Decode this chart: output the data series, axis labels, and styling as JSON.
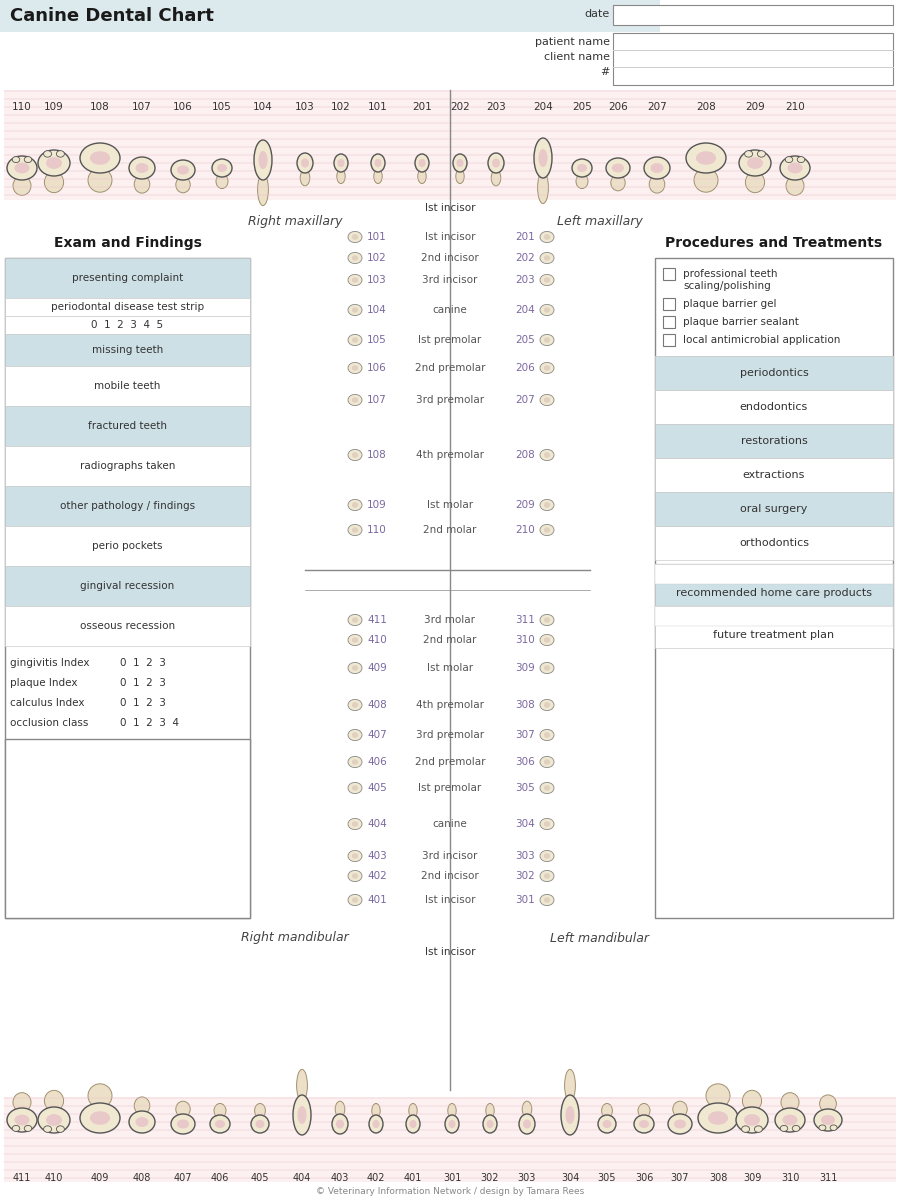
{
  "title": "Canine Dental Chart",
  "title_bg": "#dce9ed",
  "bg_color": "#ffffff",
  "shaded_color": "#cde0e5",
  "top_teeth_numbers": [
    "110",
    "109",
    "108",
    "107",
    "106",
    "105",
    "104",
    "103",
    "102",
    "101",
    "201",
    "202",
    "203",
    "204",
    "205",
    "206",
    "207",
    "208",
    "209",
    "210"
  ],
  "bottom_teeth_numbers": [
    "411",
    "410",
    "409",
    "408",
    "407",
    "406",
    "405",
    "404",
    "403",
    "402",
    "401",
    "301",
    "302",
    "303",
    "304",
    "305",
    "306",
    "307",
    "308",
    "309",
    "310",
    "311"
  ],
  "exam_title": "Exam and Findings",
  "exam_rows": [
    {
      "label": "presenting complaint",
      "shaded": true,
      "extra_lines": 1
    },
    {
      "label": "periodontal disease test strip",
      "shaded": false,
      "extra_lines": 0
    },
    {
      "label": "0  1  2  3  4  5",
      "shaded": false,
      "extra_lines": 0
    },
    {
      "label": "missing teeth",
      "shaded": true,
      "extra_lines": 1
    },
    {
      "label": "mobile teeth",
      "shaded": false,
      "extra_lines": 1
    },
    {
      "label": "fractured teeth",
      "shaded": true,
      "extra_lines": 1
    },
    {
      "label": "radiographs taken",
      "shaded": false,
      "extra_lines": 1
    },
    {
      "label": "other pathology / findings",
      "shaded": true,
      "extra_lines": 1
    },
    {
      "label": "perio pockets",
      "shaded": false,
      "extra_lines": 1
    },
    {
      "label": "gingival recession",
      "shaded": true,
      "extra_lines": 1
    },
    {
      "label": "osseous recession",
      "shaded": false,
      "extra_lines": 1
    }
  ],
  "index_rows": [
    {
      "label": "gingivitis Index",
      "values": "0  1  2  3"
    },
    {
      "label": "plaque Index    ",
      "values": "0  1  2  3"
    },
    {
      "label": "calculus Index  ",
      "values": "0  1  2  3"
    },
    {
      "label": "occlusion class ",
      "values": "0  1  2  3  4"
    }
  ],
  "procedures_title": "Procedures and Treatments",
  "procedures_checkbox": [
    {
      "line1": "professional teeth",
      "line2": "scaling/polishing"
    },
    {
      "line1": "plaque barrier gel",
      "line2": ""
    },
    {
      "line1": "plaque barrier sealant",
      "line2": ""
    },
    {
      "line1": "local antimicrobial application",
      "line2": ""
    }
  ],
  "procedures_rows": [
    {
      "label": "periodontics",
      "shaded": true
    },
    {
      "label": "endodontics",
      "shaded": false
    },
    {
      "label": "restorations",
      "shaded": true
    },
    {
      "label": "extractions",
      "shaded": false
    },
    {
      "label": "oral surgery",
      "shaded": true
    },
    {
      "label": "orthodontics",
      "shaded": false
    }
  ],
  "procedures_text_rows": [
    {
      "label": "recommended home care products",
      "shaded": true
    },
    {
      "label": "future treatment plan",
      "shaded": false
    }
  ],
  "tooth_labels_upper": [
    {
      "num": "101",
      "name": "Ist incisor",
      "num2": "201"
    },
    {
      "num": "102",
      "name": "2nd incisor",
      "num2": "202"
    },
    {
      "num": "103",
      "name": "3rd incisor",
      "num2": "203"
    },
    {
      "num": "104",
      "name": "canine",
      "num2": "204"
    },
    {
      "num": "105",
      "name": "Ist premolar",
      "num2": "205"
    },
    {
      "num": "106",
      "name": "2nd premolar",
      "num2": "206"
    },
    {
      "num": "107",
      "name": "3rd premolar",
      "num2": "207"
    },
    {
      "num": "108",
      "name": "4th premolar",
      "num2": "208"
    },
    {
      "num": "109",
      "name": "Ist molar",
      "num2": "209"
    },
    {
      "num": "110",
      "name": "2nd molar",
      "num2": "210"
    }
  ],
  "tooth_labels_lower": [
    {
      "num": "411",
      "name": "3rd molar",
      "num2": "311"
    },
    {
      "num": "410",
      "name": "2nd molar",
      "num2": "310"
    },
    {
      "num": "409",
      "name": "Ist molar",
      "num2": "309"
    },
    {
      "num": "408",
      "name": "4th premolar",
      "num2": "308"
    },
    {
      "num": "407",
      "name": "3rd premolar",
      "num2": "307"
    },
    {
      "num": "406",
      "name": "2nd premolar",
      "num2": "306"
    },
    {
      "num": "405",
      "name": "Ist premolar",
      "num2": "305"
    },
    {
      "num": "404",
      "name": "canine",
      "num2": "304"
    },
    {
      "num": "403",
      "name": "3rd incisor",
      "num2": "303"
    },
    {
      "num": "402",
      "name": "2nd incisor",
      "num2": "302"
    },
    {
      "num": "401",
      "name": "Ist incisor",
      "num2": "301"
    }
  ],
  "copyright": "© Veterinary Information Network / design by Tamara Rees",
  "purple": "#7b68a0",
  "tooth_fill": "#f0e8d0",
  "tooth_edge": "#a09070",
  "tooth_pink": "#e8c8c8"
}
